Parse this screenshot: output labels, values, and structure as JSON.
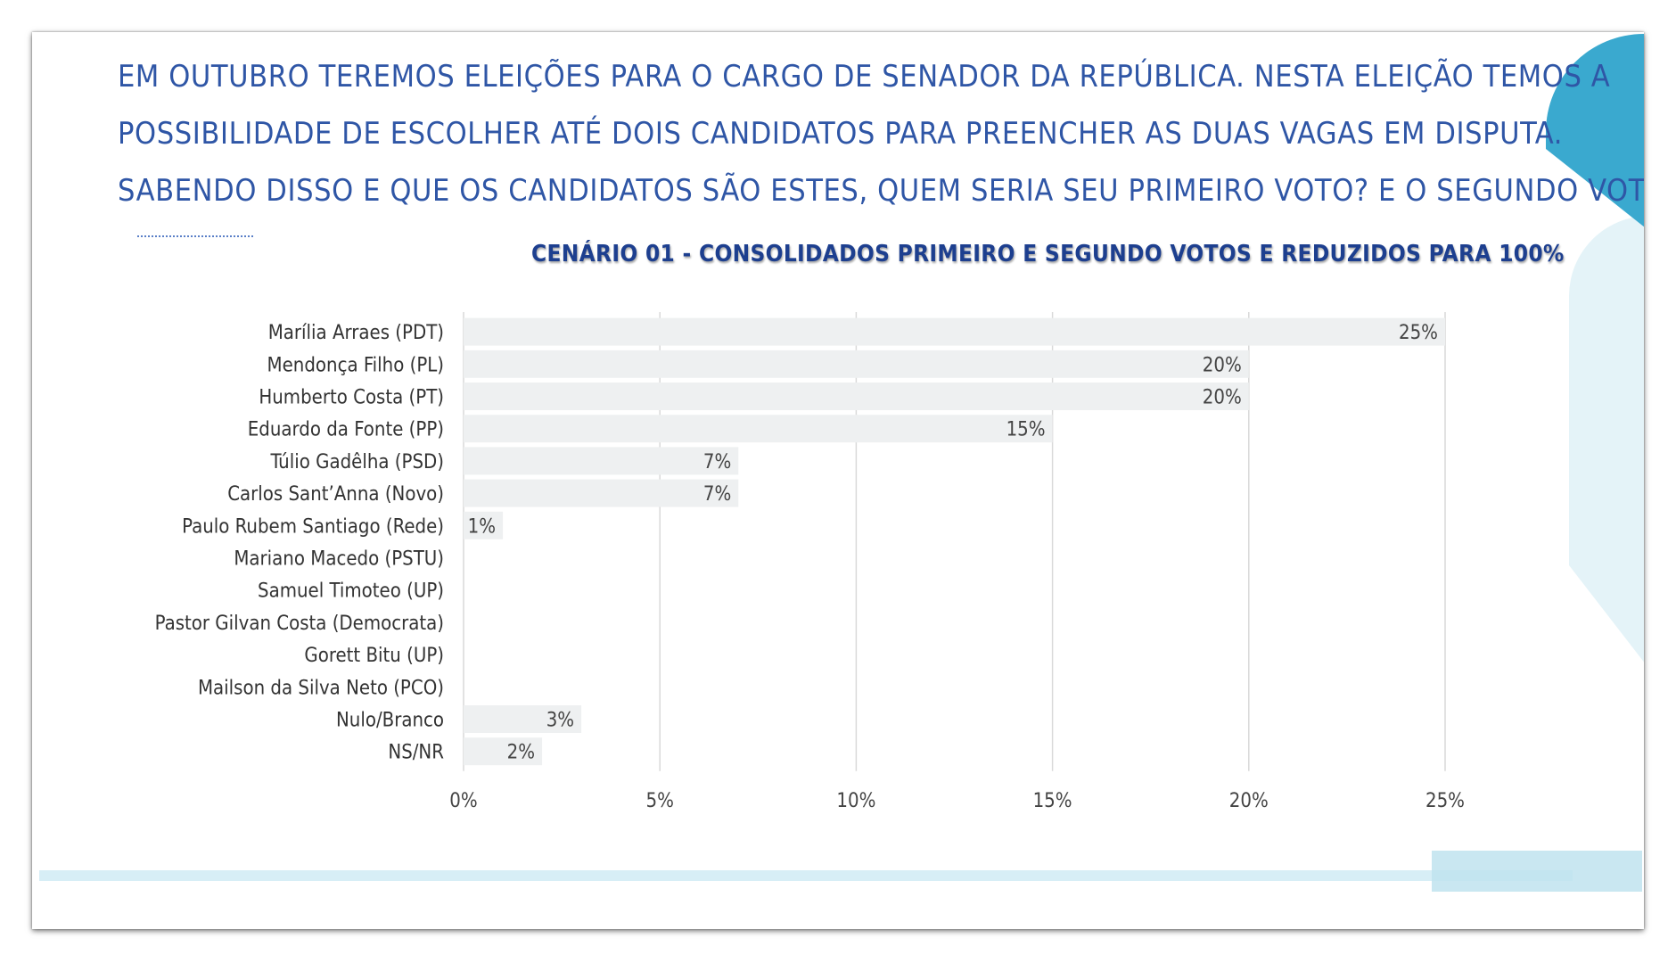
{
  "question": {
    "line1": "Em outubro teremos eleições para o cargo de senador da República. Nesta eleição temos a",
    "line2": "possibilidade de escolher até dois candidatos para preencher as duas vagas em disputa.",
    "line3": "Sabendo disso e que os candidatos são estes, quem seria seu primeiro voto? E o segundo voto?"
  },
  "colors": {
    "bar": "#eef0f1",
    "grid": "#d9d9d9",
    "accent": "#3aa9cf",
    "title": "#1d3f8f"
  },
  "chart_data": {
    "type": "bar",
    "orientation": "horizontal",
    "title": "CENÁRIO 01 - CONSOLIDADOS PRIMEIRO E SEGUNDO VOTOS E REDUZIDOS PARA 100%",
    "categories": [
      "Marília Arraes (PDT)",
      "Mendonça Filho (PL)",
      "Humberto Costa (PT)",
      "Eduardo da Fonte (PP)",
      "Túlio Gadêlha (PSD)",
      "Carlos Sant’Anna (Novo)",
      "Paulo Rubem Santiago (Rede)",
      "Mariano Macedo (PSTU)",
      "Samuel Timoteo (UP)",
      "Pastor Gilvan Costa (Democrata)",
      "Gorett Bitu (UP)",
      "Mailson da Silva Neto (PCO)",
      "Nulo/Branco",
      "NS/NR"
    ],
    "values": [
      25,
      20,
      20,
      15,
      7,
      7,
      1,
      0,
      0,
      0,
      0,
      0,
      3,
      2
    ],
    "value_labels": [
      "25%",
      "20%",
      "20%",
      "15%",
      "7%",
      "7%",
      "1%",
      "",
      "",
      "",
      "",
      "",
      "3%",
      "2%"
    ],
    "xlim": [
      0,
      25
    ],
    "xticks": [
      0,
      5,
      10,
      15,
      20,
      25
    ],
    "xtick_labels": [
      "0%",
      "5%",
      "10%",
      "15%",
      "20%",
      "25%"
    ],
    "grid": true,
    "legend": "none"
  }
}
